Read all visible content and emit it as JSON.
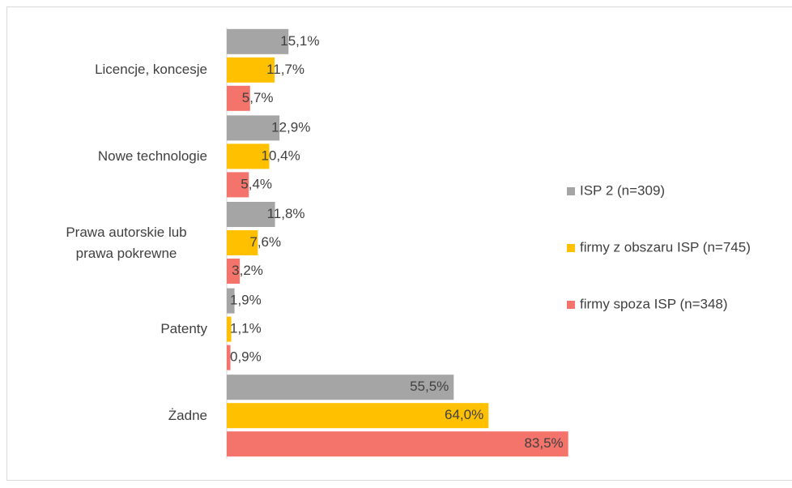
{
  "chart_data": {
    "type": "bar",
    "orientation": "horizontal",
    "categories": [
      "Licencje, koncesje",
      "Nowe technologie",
      "Prawa autorskie lub prawa pokrewne",
      "Patenty",
      "Żadne"
    ],
    "series": [
      {
        "name": "ISP 2 (n=309)",
        "color": "#a5a5a5",
        "values": [
          15.1,
          12.9,
          11.8,
          1.9,
          55.5
        ],
        "value_labels": [
          "15,1%",
          "12,9%",
          "11,8%",
          "1,9%",
          "55,5%"
        ]
      },
      {
        "name": "firmy z obszaru ISP (n=745)",
        "color": "#ffc000",
        "values": [
          11.7,
          10.4,
          7.6,
          1.1,
          64.0
        ],
        "value_labels": [
          "11,7%",
          "10,4%",
          "7,6%",
          "1,1%",
          "64,0%"
        ]
      },
      {
        "name": "firmy spoza ISP (n=348)",
        "color": "#f4736a",
        "values": [
          5.7,
          5.4,
          3.2,
          0.9,
          83.5
        ],
        "value_labels": [
          "5,7%",
          "5,4%",
          "3,2%",
          "0,9%",
          "83,5%"
        ]
      }
    ],
    "legend": "right"
  }
}
